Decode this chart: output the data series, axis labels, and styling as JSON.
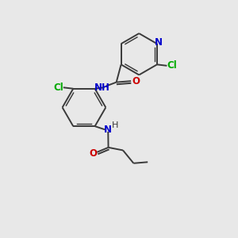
{
  "bg_color": "#e8e8e8",
  "bond_color": "#3a3a3a",
  "N_color": "#0000cc",
  "O_color": "#cc0000",
  "Cl_color": "#00aa00",
  "bond_width": 1.4,
  "font_size": 8.5,
  "fig_size": [
    3.0,
    3.0
  ],
  "dpi": 100,
  "xlim": [
    0,
    10
  ],
  "ylim": [
    0,
    10
  ]
}
